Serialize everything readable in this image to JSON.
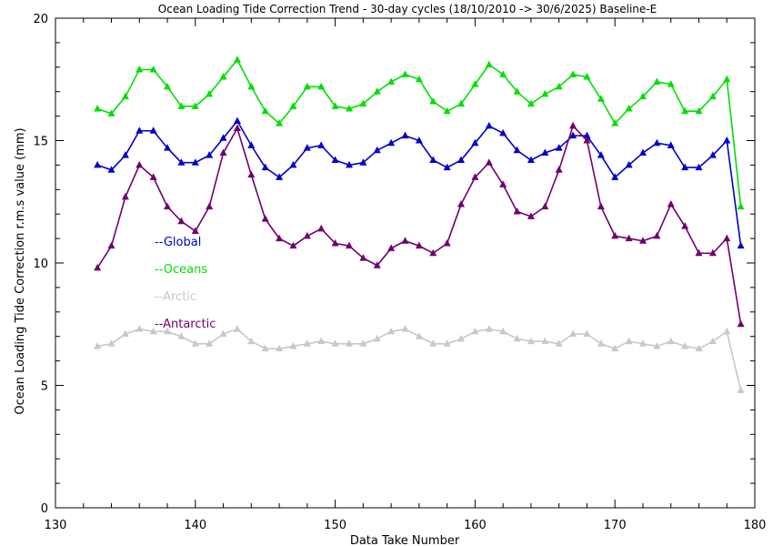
{
  "chart_data": {
    "type": "line",
    "title": "Ocean Loading Tide Correction Trend - 30-day cycles (18/10/2010 -> 30/6/2025) Baseline-E",
    "xlabel": "Data Take Number",
    "ylabel": "Ocean Loading Tide Correction r.m.s value (mm)",
    "xlim": [
      130,
      180
    ],
    "ylim": [
      0,
      20
    ],
    "xticks": [
      130,
      140,
      150,
      160,
      170,
      180
    ],
    "yticks": [
      0,
      5,
      10,
      15,
      20
    ],
    "grid": false,
    "legend_position": "left-middle",
    "x": [
      133,
      134,
      135,
      136,
      137,
      138,
      139,
      140,
      141,
      142,
      143,
      144,
      145,
      146,
      147,
      148,
      149,
      150,
      151,
      152,
      153,
      154,
      155,
      156,
      157,
      158,
      159,
      160,
      161,
      162,
      163,
      164,
      165,
      166,
      167,
      168,
      169,
      170,
      171,
      172,
      173,
      174,
      175,
      176,
      177,
      178,
      179
    ],
    "series": [
      {
        "name": "Global",
        "legend_label": "--Global",
        "color": "#0000cc",
        "values": [
          14.0,
          13.8,
          14.4,
          15.4,
          15.4,
          14.7,
          14.1,
          14.1,
          14.4,
          15.1,
          15.8,
          14.8,
          13.9,
          13.5,
          14.0,
          14.7,
          14.8,
          14.2,
          14.0,
          14.1,
          14.6,
          14.9,
          15.2,
          15.0,
          14.2,
          13.9,
          14.2,
          14.9,
          15.6,
          15.3,
          14.6,
          14.2,
          14.5,
          14.7,
          15.2,
          15.2,
          14.4,
          13.5,
          14.0,
          14.5,
          14.9,
          14.8,
          13.9,
          13.9,
          14.4,
          15.0,
          10.7
        ]
      },
      {
        "name": "Oceans",
        "legend_label": "--Oceans",
        "color": "#00e000",
        "values": [
          16.3,
          16.1,
          16.8,
          17.9,
          17.9,
          17.2,
          16.4,
          16.4,
          16.9,
          17.6,
          18.3,
          17.2,
          16.2,
          15.7,
          16.4,
          17.2,
          17.2,
          16.4,
          16.3,
          16.5,
          17.0,
          17.4,
          17.7,
          17.5,
          16.6,
          16.2,
          16.5,
          17.3,
          18.1,
          17.7,
          17.0,
          16.5,
          16.9,
          17.2,
          17.7,
          17.6,
          16.7,
          15.7,
          16.3,
          16.8,
          17.4,
          17.3,
          16.2,
          16.2,
          16.8,
          17.5,
          12.3
        ]
      },
      {
        "name": "Arctic",
        "legend_label": "--Arctic",
        "color": "#c8c8c8",
        "values": [
          6.6,
          6.7,
          7.1,
          7.3,
          7.2,
          7.2,
          7.0,
          6.7,
          6.7,
          7.1,
          7.3,
          6.8,
          6.5,
          6.5,
          6.6,
          6.7,
          6.8,
          6.7,
          6.7,
          6.7,
          6.9,
          7.2,
          7.3,
          7.0,
          6.7,
          6.7,
          6.9,
          7.2,
          7.3,
          7.2,
          6.9,
          6.8,
          6.8,
          6.7,
          7.1,
          7.1,
          6.7,
          6.5,
          6.8,
          6.7,
          6.6,
          6.8,
          6.6,
          6.5,
          6.8,
          7.2,
          4.8
        ]
      },
      {
        "name": "Antarctic",
        "legend_label": "--Antarctic",
        "color": "#700070",
        "values": [
          9.8,
          10.7,
          12.7,
          14.0,
          13.5,
          12.3,
          11.7,
          11.3,
          12.3,
          14.5,
          15.5,
          13.6,
          11.8,
          11.0,
          10.7,
          11.1,
          11.4,
          10.8,
          10.7,
          10.2,
          9.9,
          10.6,
          10.9,
          10.7,
          10.4,
          10.8,
          12.4,
          13.5,
          14.1,
          13.2,
          12.1,
          11.9,
          12.3,
          13.8,
          15.6,
          15.0,
          12.3,
          11.1,
          11.0,
          10.9,
          11.1,
          12.4,
          11.5,
          10.4,
          10.4,
          11.0,
          7.5
        ]
      }
    ]
  }
}
